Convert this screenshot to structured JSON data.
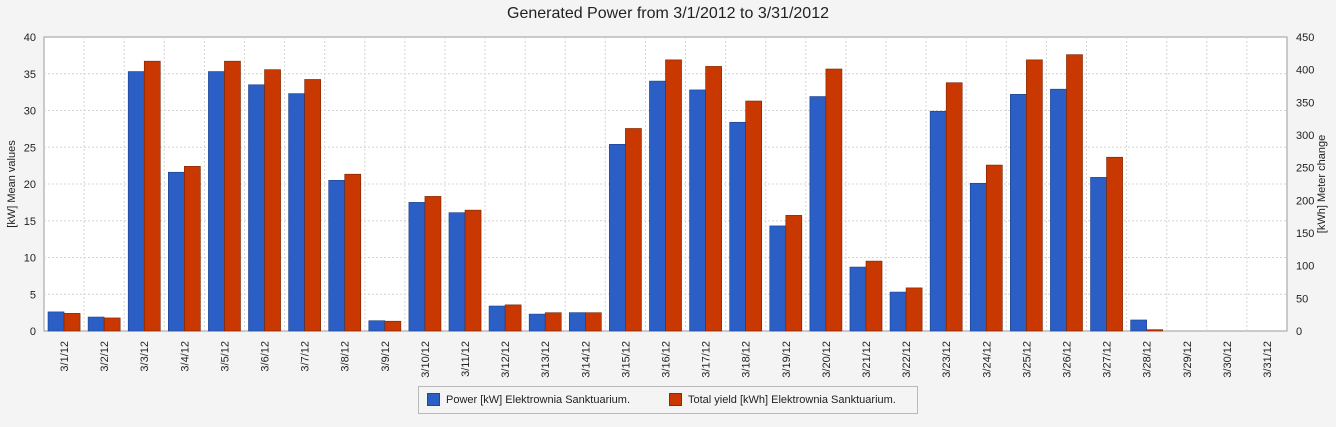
{
  "chart_data": {
    "type": "bar",
    "title": "Generated Power from 3/1/2012 to 3/31/2012",
    "ylabel_left": "[kW] Mean values",
    "ylabel_right": "[kWh] Meter change",
    "ylim_left": [
      0,
      40
    ],
    "yticks_left": [
      0,
      5,
      10,
      15,
      20,
      25,
      30,
      35,
      40
    ],
    "ylim_right": [
      0,
      450
    ],
    "yticks_right": [
      0,
      50,
      100,
      150,
      200,
      250,
      300,
      350,
      400,
      450
    ],
    "grid": true,
    "legend_position": "bottom-center",
    "categories": [
      "3/1/12",
      "3/2/12",
      "3/3/12",
      "3/4/12",
      "3/5/12",
      "3/6/12",
      "3/7/12",
      "3/8/12",
      "3/9/12",
      "3/10/12",
      "3/11/12",
      "3/12/12",
      "3/13/12",
      "3/14/12",
      "3/15/12",
      "3/16/12",
      "3/17/12",
      "3/18/12",
      "3/19/12",
      "3/20/12",
      "3/21/12",
      "3/22/12",
      "3/23/12",
      "3/24/12",
      "3/25/12",
      "3/26/12",
      "3/27/12",
      "3/28/12",
      "3/29/12",
      "3/30/12",
      "3/31/12"
    ],
    "series": [
      {
        "name": "Power [kW] Elektrownia Sanktuarium.",
        "axis": "left",
        "color": "#2b5fc6",
        "values": [
          2.6,
          1.9,
          35.3,
          21.6,
          35.3,
          33.5,
          32.3,
          20.5,
          1.4,
          17.5,
          16.1,
          3.4,
          2.3,
          2.5,
          25.4,
          34.0,
          32.8,
          28.4,
          14.3,
          31.9,
          8.7,
          5.3,
          29.9,
          20.1,
          32.2,
          32.9,
          20.9,
          1.5,
          0,
          0,
          0
        ]
      },
      {
        "name": "Total yield [kWh] Elektrownia Sanktuarium.",
        "axis": "right",
        "color": "#c83800",
        "values": [
          27,
          20,
          413,
          252,
          413,
          400,
          385,
          240,
          15,
          206,
          185,
          40,
          28,
          28,
          310,
          415,
          405,
          352,
          177,
          401,
          107,
          66,
          380,
          254,
          415,
          423,
          266,
          2,
          0,
          0,
          0
        ]
      }
    ]
  }
}
